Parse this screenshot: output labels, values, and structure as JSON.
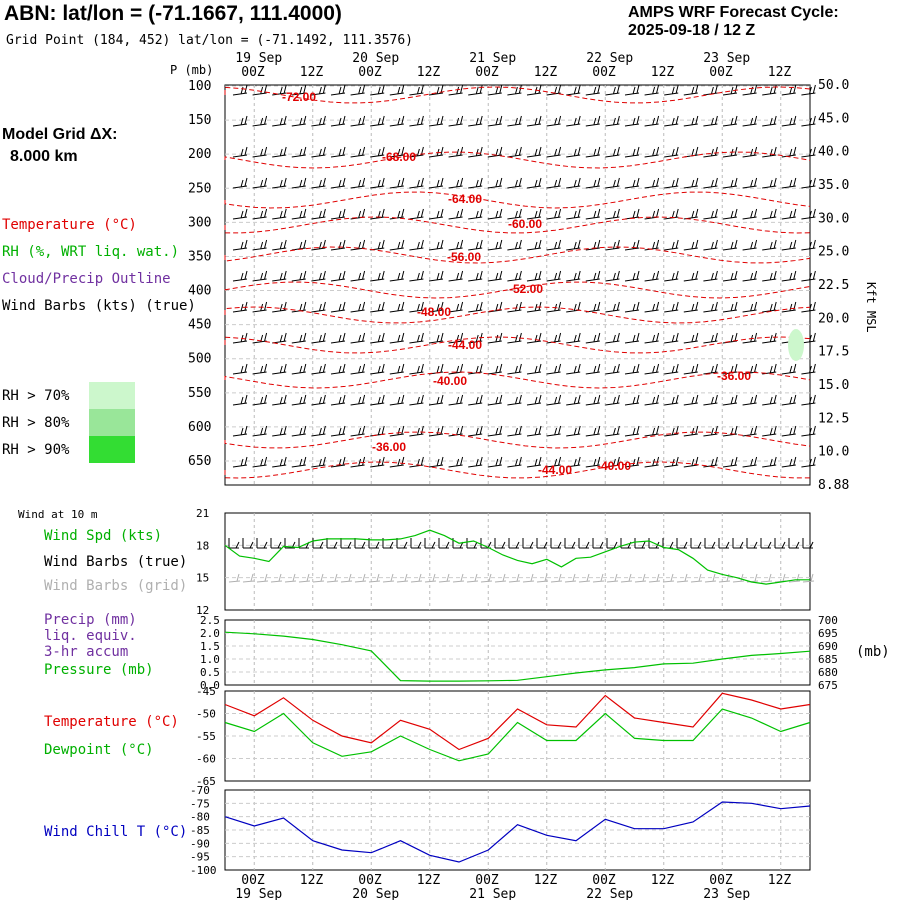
{
  "header": {
    "title": "ABN:  lat/lon = (-71.1667, 111.4000)",
    "grid_point": "Grid Point (184, 452) lat/lon = (-71.1492, 111.3576)",
    "cycle_line1": "AMPS WRF Forecast Cycle:",
    "cycle_line2": "2025-09-18 / 12  Z"
  },
  "model_grid": {
    "label": "Model Grid ΔX:",
    "value": "8.000 km"
  },
  "legend": {
    "temperature": "Temperature (°C)",
    "rh": "RH (%, WRT liq. wat.)",
    "cloud": "Cloud/Precip Outline",
    "wind": "Wind Barbs (kts) (true)",
    "rh_levels": [
      {
        "label": "RH > 70%",
        "color": "#ccf7cc"
      },
      {
        "label": "RH > 80%",
        "color": "#99e699"
      },
      {
        "label": "RH > 90%",
        "color": "#33dd33"
      }
    ]
  },
  "colors": {
    "temperature": "#e00000",
    "dewpoint": "#00c000",
    "wind_speed": "#00c000",
    "pressure": "#00c000",
    "precip": "#7030a0",
    "wind_chill": "#0000c0",
    "grid_barbs": "#b0b0b0"
  },
  "chart_data": [
    {
      "type": "line",
      "panel": "vertical cross-section (time-height)",
      "ylabel": "P (mb)",
      "y_right_label": "Kft MSL",
      "y_ticks_left": [
        "100",
        "150",
        "200",
        "250",
        "300",
        "350",
        "400",
        "450",
        "500",
        "550",
        "600",
        "650"
      ],
      "y_ticks_right": [
        "50.0",
        "45.0",
        "40.0",
        "35.0",
        "30.0",
        "25.0",
        "22.5",
        "20.0",
        "17.5",
        "15.0",
        "12.5",
        "10.0",
        "8.88"
      ],
      "x_ticks_top": [
        "00Z",
        "12Z",
        "00Z",
        "12Z",
        "00Z",
        "12Z",
        "00Z",
        "12Z",
        "00Z",
        "12Z"
      ],
      "date_labels": [
        "19 Sep",
        "20 Sep",
        "21 Sep",
        "22 Sep",
        "23 Sep"
      ],
      "isotherm_labels": [
        "-72.00",
        "-68.00",
        "-64.00",
        "-60.00",
        "-56.00",
        "-52.00",
        "-48.00",
        "-44.00",
        "-40.00",
        "-36.00",
        "-36.00",
        "-44.00",
        "-40.00"
      ],
      "x": [
        "18/12Z",
        "19/00Z",
        "19/12Z",
        "20/00Z",
        "20/12Z",
        "21/00Z",
        "21/12Z",
        "22/00Z",
        "22/12Z",
        "23/00Z",
        "23/12Z"
      ]
    },
    {
      "type": "line",
      "panel": "Wind at 10 m",
      "title": "Wind at 10 m",
      "series": [
        {
          "name": "Wind Spd (kts)",
          "x": [
            0,
            3,
            6,
            9,
            12,
            15,
            18,
            21,
            24,
            27,
            30,
            33,
            36,
            39,
            42,
            45,
            48,
            51,
            54,
            57,
            60,
            63,
            66,
            69,
            72,
            75,
            78,
            81,
            84,
            87,
            90,
            93,
            96,
            99,
            102,
            105,
            108,
            111,
            114,
            117,
            120
          ],
          "values": [
            18.0,
            17.0,
            16.8,
            16.5,
            17.9,
            17.8,
            18.4,
            18.6,
            18.6,
            18.6,
            18.5,
            18.5,
            18.6,
            18.9,
            19.4,
            18.9,
            18.2,
            18.4,
            17.8,
            17.1,
            16.6,
            16.3,
            16.7,
            16.0,
            16.8,
            16.9,
            17.4,
            17.9,
            18.3,
            18.4,
            17.8,
            17.6,
            16.8,
            15.7,
            15.3,
            15.0,
            14.6,
            14.4,
            14.6,
            14.8,
            14.8
          ]
        }
      ],
      "legend": [
        "Wind Spd (kts)",
        "Wind Barbs (true)",
        "Wind Barbs (grid)"
      ],
      "y_ticks": [
        "21",
        "18",
        "15",
        "12"
      ],
      "ylim": [
        12,
        21
      ]
    },
    {
      "type": "line",
      "panel": "Precip / Pressure",
      "legend": [
        "Precip (mm)",
        "liq. equiv.",
        "3-hr accum",
        "Pressure (mb)"
      ],
      "y_ticks_left": [
        "2.5",
        "2.0",
        "1.5",
        "1.0",
        "0.5",
        "0.0"
      ],
      "y_ticks_right": [
        "700",
        "695",
        "690",
        "685",
        "680",
        "675"
      ],
      "y_right_unit": "(mb)",
      "series": [
        {
          "name": "Pressure (mb)",
          "x": [
            0,
            6,
            12,
            18,
            24,
            30,
            36,
            42,
            48,
            54,
            60,
            66,
            72,
            78,
            84,
            90,
            96,
            102,
            108,
            114,
            120
          ],
          "values": [
            695.3,
            694.7,
            693.8,
            692.5,
            690.5,
            688.1,
            676.7,
            676.5,
            676.5,
            676.6,
            676.8,
            678.2,
            679.6,
            680.8,
            681.7,
            683.1,
            683.4,
            685.0,
            686.4,
            687.1,
            688.0
          ]
        }
      ],
      "ylim_right": [
        675,
        700
      ],
      "ylim_left": [
        0,
        2.5
      ]
    },
    {
      "type": "line",
      "panel": "Temperature / Dewpoint",
      "y_ticks": [
        "-45",
        "-50",
        "-55",
        "-60",
        "-65"
      ],
      "ylim": [
        -65,
        -45
      ],
      "series": [
        {
          "name": "Temperature (°C)",
          "x": [
            0,
            6,
            12,
            18,
            24,
            30,
            36,
            42,
            48,
            54,
            60,
            66,
            72,
            78,
            84,
            90,
            96,
            102,
            108,
            114,
            120
          ],
          "values": [
            -48.0,
            -50.5,
            -46.5,
            -51.5,
            -55.0,
            -56.5,
            -51.5,
            -53.5,
            -58.0,
            -55.5,
            -49.0,
            -52.5,
            -53.0,
            -46.0,
            -51.0,
            -52.0,
            -53.0,
            -45.5,
            -47.0,
            -49.0,
            -48.0
          ]
        },
        {
          "name": "Dewpoint (°C)",
          "x": [
            0,
            6,
            12,
            18,
            24,
            30,
            36,
            42,
            48,
            54,
            60,
            66,
            72,
            78,
            84,
            90,
            96,
            102,
            108,
            114,
            120
          ],
          "values": [
            -52.0,
            -54.0,
            -50.0,
            -56.5,
            -59.5,
            -58.5,
            -55.0,
            -58.0,
            -60.5,
            -59.0,
            -52.0,
            -56.0,
            -56.0,
            -50.0,
            -55.5,
            -56.0,
            -56.0,
            -49.0,
            -51.0,
            -54.0,
            -52.0
          ]
        }
      ]
    },
    {
      "type": "line",
      "panel": "Wind Chill",
      "y_ticks": [
        "-70",
        "-75",
        "-80",
        "-85",
        "-90",
        "-95",
        "-100"
      ],
      "ylim": [
        -100,
        -70
      ],
      "series": [
        {
          "name": "Wind Chill T (°C)",
          "x": [
            0,
            6,
            12,
            18,
            24,
            30,
            36,
            42,
            48,
            54,
            60,
            66,
            72,
            78,
            84,
            90,
            96,
            102,
            108,
            114,
            120
          ],
          "values": [
            -80.0,
            -83.5,
            -80.5,
            -89.0,
            -92.5,
            -93.5,
            -89.0,
            -94.5,
            -97.0,
            -92.5,
            -83.0,
            -87.0,
            -89.0,
            -81.0,
            -84.5,
            -84.5,
            -82.0,
            -74.5,
            -75.0,
            -77.0,
            -76.0
          ]
        }
      ],
      "x_ticks_bottom": [
        "00Z",
        "12Z",
        "00Z",
        "12Z",
        "00Z",
        "12Z",
        "00Z",
        "12Z",
        "00Z",
        "12Z"
      ],
      "date_labels": [
        "19 Sep",
        "20 Sep",
        "21 Sep",
        "22 Sep",
        "23 Sep"
      ]
    }
  ]
}
